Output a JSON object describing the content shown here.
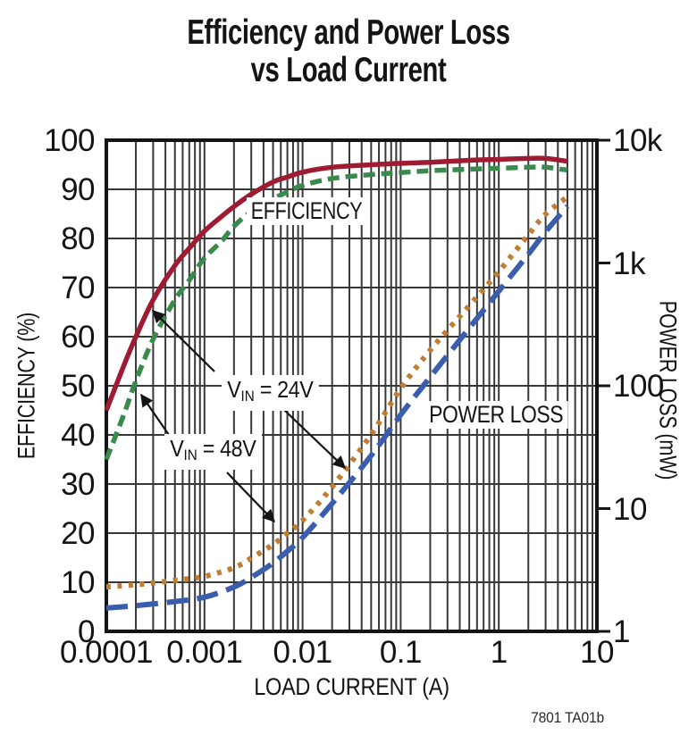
{
  "title": {
    "line1": "Efficiency and Power Loss",
    "line2": "vs Load Current"
  },
  "footer_note": "7801 TA01b",
  "labels": {
    "efficiency_box": "EFFICIENCY",
    "power_loss_box": "POWER LOSS",
    "vin24": {
      "v": "V",
      "sub": "IN",
      "rest": " = 24V"
    },
    "vin48": {
      "v": "V",
      "sub": "IN",
      "rest": " = 48V"
    }
  },
  "axes": {
    "x": {
      "title": "LOAD CURRENT (A)"
    },
    "y_left": {
      "title": "EFFICIENCY (%)"
    },
    "y_right": {
      "title": "POWER LOSS (mW)"
    }
  },
  "chart_data": {
    "type": "line",
    "title": "Efficiency and Power Loss vs Load Current",
    "xlabel": "LOAD CURRENT (A)",
    "x_scale": "log",
    "x_range": [
      0.0001,
      10
    ],
    "x_ticks": {
      "values": [
        0.0001,
        0.001,
        0.01,
        0.1,
        1,
        10
      ],
      "labels": [
        "0.0001",
        "0.001",
        "0.01",
        "0.1",
        "1",
        "10"
      ]
    },
    "y_left_axis": {
      "label": "EFFICIENCY (%)",
      "scale": "linear",
      "range": [
        0,
        100
      ],
      "tick_values": [
        0,
        10,
        20,
        30,
        40,
        50,
        60,
        70,
        80,
        90,
        100
      ],
      "tick_labels": [
        "0",
        "10",
        "20",
        "30",
        "40",
        "50",
        "60",
        "70",
        "80",
        "90",
        "100"
      ]
    },
    "y_right_axis": {
      "label": "POWER LOSS (mW)",
      "scale": "log",
      "range": [
        1,
        10000
      ],
      "tick_values": [
        1,
        10,
        100,
        1000,
        10000
      ],
      "tick_labels": [
        "1",
        "10",
        "100",
        "1k",
        "10k"
      ]
    },
    "grid": {
      "horizontal": "major line every 10% of efficiency",
      "vertical": "log decades with minor lines at 2-9 per decade"
    },
    "series": [
      {
        "name": "efficiency-vin-24v",
        "quantity": "efficiency",
        "condition": "VIN = 24V",
        "axis": "left",
        "color": "#9e1b32",
        "line_style": "solid",
        "points": [
          [
            0.0001,
            45
          ],
          [
            0.00015,
            54
          ],
          [
            0.0002,
            60
          ],
          [
            0.0003,
            67.5
          ],
          [
            0.0005,
            74.5
          ],
          [
            0.0007,
            78
          ],
          [
            0.001,
            81.5
          ],
          [
            0.0015,
            84.5
          ],
          [
            0.002,
            86.5
          ],
          [
            0.003,
            89
          ],
          [
            0.005,
            91.5
          ],
          [
            0.007,
            92.5
          ],
          [
            0.01,
            93.5
          ],
          [
            0.02,
            94.5
          ],
          [
            0.05,
            95
          ],
          [
            0.1,
            95.3
          ],
          [
            0.2,
            95.5
          ],
          [
            0.5,
            95.9
          ],
          [
            1,
            96.1
          ],
          [
            2,
            96.3
          ],
          [
            3,
            96.3
          ],
          [
            5,
            95.7
          ]
        ]
      },
      {
        "name": "efficiency-vin-48v",
        "quantity": "efficiency",
        "condition": "VIN = 48V",
        "axis": "left",
        "color": "#3a8a4e",
        "line_style": "dashed",
        "points": [
          [
            0.0001,
            35
          ],
          [
            0.00015,
            44
          ],
          [
            0.0002,
            51
          ],
          [
            0.0003,
            59.5
          ],
          [
            0.0005,
            67.5
          ],
          [
            0.0007,
            71.5
          ],
          [
            0.001,
            76
          ],
          [
            0.0015,
            79.5
          ],
          [
            0.002,
            82.5
          ],
          [
            0.003,
            85.5
          ],
          [
            0.005,
            88
          ],
          [
            0.007,
            89.5
          ],
          [
            0.01,
            90.8
          ],
          [
            0.02,
            92.2
          ],
          [
            0.05,
            93
          ],
          [
            0.1,
            93.4
          ],
          [
            0.2,
            93.8
          ],
          [
            0.5,
            94.1
          ],
          [
            1,
            94.3
          ],
          [
            2,
            94.5
          ],
          [
            3,
            94.5
          ],
          [
            5,
            93.9
          ]
        ]
      },
      {
        "name": "power-loss-vin-24v",
        "quantity": "power_loss_mW",
        "condition": "VIN = 24V",
        "axis": "right",
        "color": "#3b5dad",
        "line_style": "long-dash",
        "points": [
          [
            0.0001,
            1.55
          ],
          [
            0.0002,
            1.62
          ],
          [
            0.0005,
            1.75
          ],
          [
            0.001,
            1.9
          ],
          [
            0.002,
            2.3
          ],
          [
            0.003,
            2.75
          ],
          [
            0.005,
            3.6
          ],
          [
            0.007,
            4.5
          ],
          [
            0.01,
            5.8
          ],
          [
            0.02,
            11
          ],
          [
            0.05,
            27
          ],
          [
            0.1,
            58
          ],
          [
            0.2,
            118
          ],
          [
            0.5,
            295
          ],
          [
            1,
            590
          ],
          [
            2,
            1180
          ],
          [
            3,
            1800
          ],
          [
            5,
            2900
          ]
        ]
      },
      {
        "name": "power-loss-vin-48v",
        "quantity": "power_loss_mW",
        "condition": "VIN = 48V",
        "axis": "right",
        "color": "#c17d33",
        "line_style": "dotted",
        "points": [
          [
            0.0001,
            2.3
          ],
          [
            0.0002,
            2.4
          ],
          [
            0.0005,
            2.6
          ],
          [
            0.001,
            2.8
          ],
          [
            0.002,
            3.3
          ],
          [
            0.003,
            3.95
          ],
          [
            0.005,
            5.1
          ],
          [
            0.007,
            6.3
          ],
          [
            0.01,
            8
          ],
          [
            0.02,
            15
          ],
          [
            0.05,
            40
          ],
          [
            0.1,
            95
          ],
          [
            0.2,
            195
          ],
          [
            0.5,
            450
          ],
          [
            1,
            850
          ],
          [
            2,
            1700
          ],
          [
            3,
            2500
          ],
          [
            5,
            3450
          ]
        ]
      }
    ],
    "annotations": {
      "curve_group_labels": [
        "EFFICIENCY",
        "POWER LOSS"
      ],
      "condition_labels": [
        "VIN = 24V",
        "VIN = 48V"
      ],
      "note": "7801 TA01b"
    }
  }
}
